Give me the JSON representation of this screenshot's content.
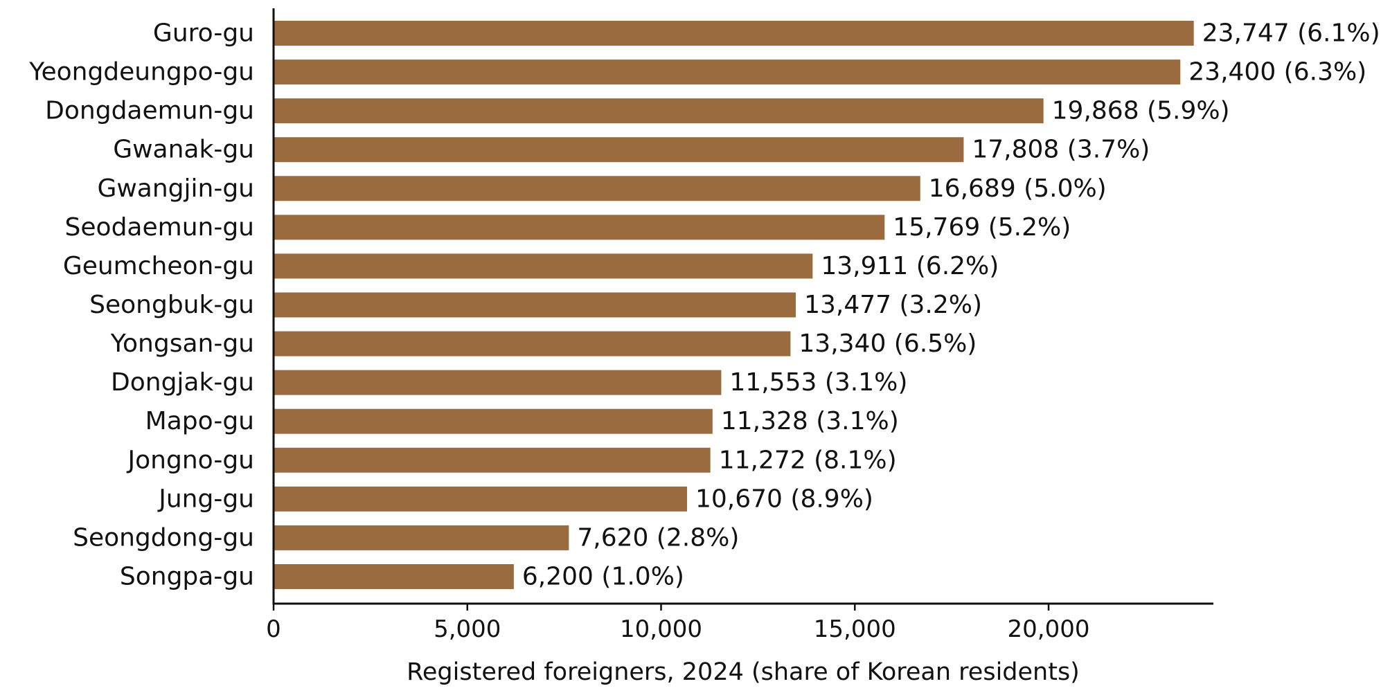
{
  "chart_data": {
    "type": "bar",
    "orientation": "horizontal",
    "categories": [
      "Guro-gu",
      "Yeongdeungpo-gu",
      "Dongdaemun-gu",
      "Gwanak-gu",
      "Gwangjin-gu",
      "Seodaemun-gu",
      "Geumcheon-gu",
      "Seongbuk-gu",
      "Yongsan-gu",
      "Dongjak-gu",
      "Mapo-gu",
      "Jongno-gu",
      "Jung-gu",
      "Seongdong-gu",
      "Songpa-gu"
    ],
    "values": [
      23747,
      23400,
      19868,
      17808,
      16689,
      15769,
      13911,
      13477,
      13340,
      11553,
      11328,
      11272,
      10670,
      7620,
      6200
    ],
    "data_labels": [
      "23,747 (6.1%)",
      "23,400 (6.3%)",
      "19,868 (5.9%)",
      "17,808 (3.7%)",
      "16,689 (5.0%)",
      "15,769 (5.2%)",
      "13,911 (6.2%)",
      "13,477 (3.2%)",
      "13,340 (6.5%)",
      "11,553 (3.1%)",
      "11,328 (3.1%)",
      "11,272 (8.1%)",
      "10,670 (8.9%)",
      "7,620 (2.8%)",
      "6,200 (1.0%)"
    ],
    "title": "",
    "xlabel": "Registered foreigners, 2024 (share of Korean residents)",
    "ylabel": "",
    "xlim": [
      0,
      24253
    ],
    "x_ticks": [
      0,
      5000,
      10000,
      15000,
      20000
    ],
    "x_tick_labels": [
      "0",
      "5,000",
      "10,000",
      "15,000",
      "20,000"
    ],
    "bar_color": "#9a6b3f",
    "grid": false,
    "legend": "none"
  }
}
